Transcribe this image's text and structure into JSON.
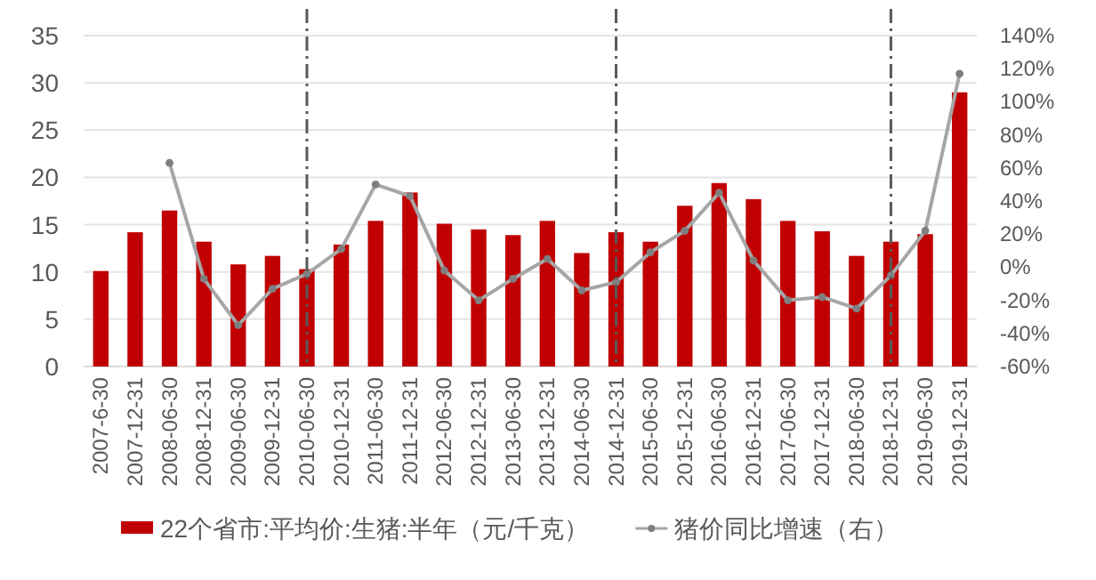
{
  "chart_data": {
    "type": "bar",
    "categories": [
      "2007-6-30",
      "2007-12-31",
      "2008-06-30",
      "2008-12-31",
      "2009-06-30",
      "2009-12-31",
      "2010-06-30",
      "2010-12-31",
      "2011-06-30",
      "2011-12-31",
      "2012-06-30",
      "2012-12-31",
      "2013-06-30",
      "2013-12-31",
      "2014-06-30",
      "2014-12-31",
      "2015-06-30",
      "2015-12-31",
      "2016-06-30",
      "2016-12-31",
      "2017-06-30",
      "2017-12-31",
      "2018-06-30",
      "2018-12-31",
      "2019-06-30",
      "2019-12-31"
    ],
    "series": [
      {
        "name": "22个省市:平均价:生猪:半年（元/千克）",
        "color": "#c00000",
        "values": [
          10.1,
          14.2,
          16.5,
          13.2,
          10.8,
          11.7,
          10.3,
          12.9,
          15.4,
          18.4,
          15.1,
          14.5,
          13.9,
          15.4,
          12.0,
          14.2,
          13.2,
          17.0,
          19.4,
          17.7,
          15.4,
          14.3,
          11.7,
          13.2,
          14.0,
          29.0
        ]
      },
      {
        "name": "猪价同比增速（右）",
        "type": "line",
        "axis": "y2",
        "color": "#a6a6a6",
        "marker": "circle",
        "values": [
          null,
          null,
          63,
          -7,
          -35,
          -13,
          -4,
          11,
          50,
          43,
          -2,
          -20,
          -7,
          5,
          -14,
          -9,
          9,
          22,
          45,
          4,
          -20,
          -18,
          -25,
          -5,
          22,
          117
        ]
      }
    ],
    "ylim": [
      0,
      35
    ],
    "yticks": [
      0,
      5,
      10,
      15,
      20,
      25,
      30,
      35
    ],
    "y2lim": [
      -60,
      140
    ],
    "y2ticks": [
      {
        "value": -60,
        "label": "-60%"
      },
      {
        "value": -40,
        "label": "-40%"
      },
      {
        "value": -20,
        "label": "-20%"
      },
      {
        "value": 0,
        "label": "0%"
      },
      {
        "value": 20,
        "label": "20%"
      },
      {
        "value": 40,
        "label": "40%"
      },
      {
        "value": 60,
        "label": "60%"
      },
      {
        "value": 80,
        "label": "80%"
      },
      {
        "value": 100,
        "label": "100%"
      },
      {
        "value": 120,
        "label": "120%"
      },
      {
        "value": 140,
        "label": "140%"
      }
    ],
    "ref_lines": [
      {
        "axis": "x",
        "value": "2010-06-30",
        "color": "#595959",
        "line_style": "dashed"
      },
      {
        "axis": "x",
        "value": "2014-12-31",
        "color": "#595959",
        "line_style": "dashed"
      },
      {
        "axis": "x",
        "value": "2018-12-31",
        "color": "#595959",
        "line_style": "dashed"
      }
    ],
    "grid": "y",
    "legend": "bottom"
  }
}
